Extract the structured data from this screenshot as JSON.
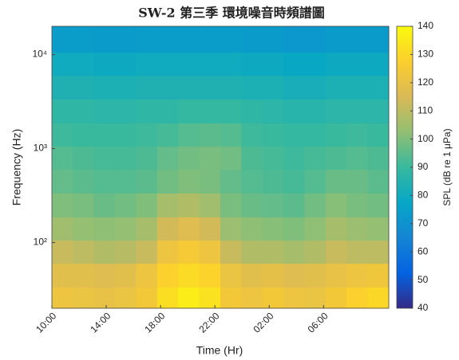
{
  "chart_data": {
    "type": "heatmap",
    "title": "SW-2 第三季 環境噪音時頻譜圖",
    "x_label": "Time (Hr)",
    "y_label": "Frequency (Hz)",
    "colorbar_label": "SPL (dB re 1 μPa)",
    "xlim": [
      10,
      34.8
    ],
    "xticks": [
      {
        "value": 10,
        "label": "10:00"
      },
      {
        "value": 14,
        "label": "14:00"
      },
      {
        "value": 18,
        "label": "18:00"
      },
      {
        "value": 22,
        "label": "22:00"
      },
      {
        "value": 26,
        "label": "02:00"
      },
      {
        "value": 30,
        "label": "06:00"
      }
    ],
    "ylim": [
      20,
      20000
    ],
    "y_scale": "log",
    "yticks": [
      {
        "value": 100,
        "label": "10²"
      },
      {
        "value": 1000,
        "label": "10³"
      },
      {
        "value": 10000,
        "label": "10⁴"
      }
    ],
    "clim": [
      40,
      140
    ],
    "cticks": [
      40,
      50,
      60,
      70,
      80,
      90,
      100,
      110,
      120,
      130,
      140
    ],
    "colormap": [
      "#352a87",
      "#0363e1",
      "#1485d4",
      "#06a7c6",
      "#38b99e",
      "#92bf73",
      "#d9ba56",
      "#fcce2e",
      "#f9fb0e"
    ],
    "x": [
      10.775,
      12.325,
      13.875,
      15.425,
      16.975,
      18.525,
      20.075,
      21.625,
      23.175,
      24.725,
      26.275,
      27.825,
      29.375,
      30.925,
      32.475,
      34.025
    ],
    "y": [
      25,
      45,
      80,
      140,
      250,
      450,
      800,
      1400,
      2500,
      4500,
      8000,
      14000
    ],
    "z": [
      [
        122,
        121,
        120,
        121,
        124,
        132,
        136,
        133,
        124,
        122,
        124,
        122,
        121,
        124,
        128,
        130
      ],
      [
        118,
        118,
        117,
        118,
        122,
        128,
        131,
        129,
        121,
        118,
        119,
        117,
        118,
        120,
        122,
        123
      ],
      [
        112,
        110,
        108,
        109,
        112,
        122,
        125,
        122,
        112,
        108,
        108,
        106,
        108,
        112,
        110,
        110
      ],
      [
        105,
        103,
        102,
        103,
        106,
        114,
        117,
        114,
        104,
        102,
        101,
        100,
        102,
        106,
        104,
        103
      ],
      [
        100,
        99,
        97,
        98,
        100,
        106,
        108,
        105,
        99,
        97,
        96,
        95,
        98,
        101,
        99,
        98
      ],
      [
        96,
        95,
        94,
        94,
        95,
        98,
        100,
        99,
        96,
        94,
        93,
        92,
        94,
        97,
        97,
        95
      ],
      [
        94,
        93,
        92,
        92,
        93,
        96,
        98,
        99,
        98,
        93,
        92,
        91,
        92,
        93,
        94,
        93
      ],
      [
        91,
        90,
        90,
        90,
        91,
        92,
        94,
        95,
        94,
        91,
        90,
        89,
        89,
        90,
        91,
        90
      ],
      [
        88,
        88,
        87,
        87,
        88,
        88,
        89,
        89,
        89,
        88,
        87,
        86,
        86,
        87,
        87,
        87
      ],
      [
        84,
        84,
        83,
        83,
        84,
        84,
        84,
        84,
        84,
        83,
        83,
        82,
        82,
        83,
        83,
        83
      ],
      [
        80,
        80,
        79,
        79,
        80,
        80,
        80,
        80,
        80,
        79,
        79,
        78,
        78,
        79,
        79,
        79
      ],
      [
        74,
        74,
        73,
        73,
        74,
        74,
        74,
        74,
        74,
        73,
        73,
        72,
        72,
        73,
        73,
        73
      ]
    ]
  }
}
